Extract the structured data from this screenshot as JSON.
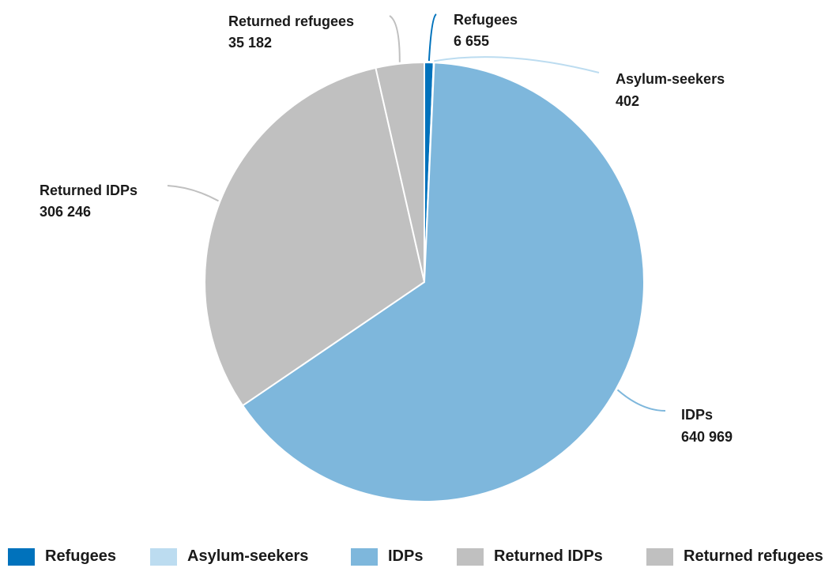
{
  "chart_data": {
    "type": "pie",
    "categories": [
      "Refugees",
      "Asylum-seekers",
      "IDPs",
      "Returned IDPs",
      "Returned refugees"
    ],
    "values": [
      6655,
      402,
      640969,
      306246,
      35182
    ],
    "value_labels": [
      "6 655",
      "402",
      "640 969",
      "306 246",
      "35 182"
    ],
    "colors": [
      "#0072bc",
      "#bcdcf0",
      "#7eb7dc",
      "#c0c0c0",
      "#c0c0c0"
    ],
    "start_angle_deg": 0,
    "direction": "clockwise",
    "legend_position": "bottom"
  },
  "legend": {
    "items": [
      {
        "label": "Refugees",
        "color": "#0072bc"
      },
      {
        "label": "Asylum-seekers",
        "color": "#bcdcf0"
      },
      {
        "label": "IDPs",
        "color": "#7eb7dc"
      },
      {
        "label": "Returned IDPs",
        "color": "#c0c0c0"
      },
      {
        "label": "Returned refugees",
        "color": "#c0c0c0"
      }
    ]
  }
}
